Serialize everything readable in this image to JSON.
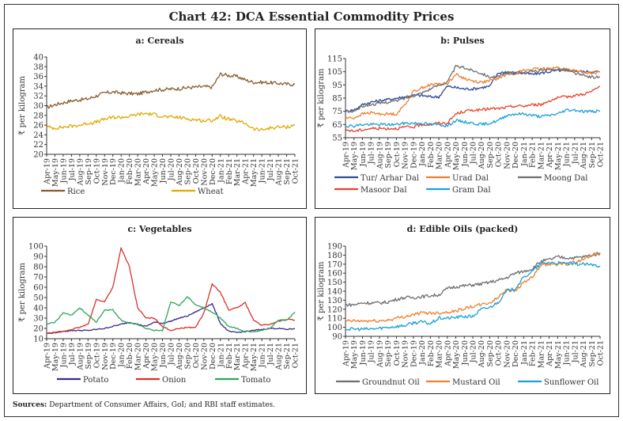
{
  "title": "Chart 42: DCA Essential Commodity Prices",
  "sources_label": "Sources:",
  "sources_text": "Department of Consumer Affairs, GoI; and RBI staff estimates.",
  "chart_data": [
    {
      "id": "cereals",
      "type": "line",
      "title": "a: Cereals",
      "xlabel": "",
      "ylabel": "₹ per kilogram",
      "ylim": [
        20,
        40
      ],
      "yticks": [
        20,
        22,
        24,
        26,
        28,
        30,
        32,
        34,
        36,
        38,
        40
      ],
      "categories": [
        "Apr-19",
        "May-19",
        "Jun-19",
        "Jul-19",
        "Aug-19",
        "Sep-19",
        "Oct-19",
        "Nov-19",
        "Dec-19",
        "Jan-20",
        "Feb-20",
        "Mar-20",
        "Apr-20",
        "May-20",
        "Jun-20",
        "Jul-20",
        "Aug-20",
        "Sep-20",
        "Oct-20",
        "Nov-20",
        "Dec-20",
        "Jan-21",
        "Feb-21",
        "Mar-21",
        "Apr-21",
        "May-21",
        "Jun-21",
        "Jul-21",
        "Aug-21",
        "Sep-21",
        "Oct-21"
      ],
      "legend_position": "bottom",
      "series": [
        {
          "name": "Rice",
          "color": "#8B5A2B",
          "values": [
            29.6,
            30.2,
            30.6,
            31.0,
            31.2,
            31.4,
            32.0,
            32.6,
            32.8,
            32.6,
            32.5,
            32.4,
            32.8,
            33.2,
            33.3,
            33.4,
            33.5,
            33.7,
            33.8,
            33.9,
            33.8,
            36.5,
            36.2,
            36.0,
            35.3,
            34.8,
            34.8,
            34.7,
            34.6,
            34.4,
            34.4
          ]
        },
        {
          "name": "Wheat",
          "color": "#E0A800",
          "values": [
            25.6,
            25.4,
            25.6,
            25.8,
            26.0,
            26.4,
            26.6,
            27.2,
            27.6,
            27.6,
            27.8,
            28.2,
            28.4,
            28.2,
            27.8,
            27.6,
            27.6,
            27.3,
            27.1,
            26.9,
            27.0,
            27.8,
            27.2,
            26.8,
            26.4,
            25.2,
            25.0,
            25.4,
            25.6,
            25.6,
            26.0
          ]
        }
      ]
    },
    {
      "id": "pulses",
      "type": "line",
      "title": "b: Pulses",
      "xlabel": "",
      "ylabel": "₹ per kilogram",
      "ylim": [
        55,
        115
      ],
      "yticks": [
        55,
        65,
        75,
        85,
        95,
        105,
        115
      ],
      "categories": [
        "Apr-19",
        "May-19",
        "Jun-19",
        "Jul-19",
        "Aug-19",
        "Sep-19",
        "Oct-19",
        "Nov-19",
        "Dec-19",
        "Jan-20",
        "Feb-20",
        "Mar-20",
        "Apr-20",
        "May-20",
        "Jun-20",
        "Jul-20",
        "Aug-20",
        "Sep-20",
        "Oct-20",
        "Nov-20",
        "Dec-20",
        "Jan-21",
        "Feb-21",
        "Mar-21",
        "Apr-21",
        "May-21",
        "Jun-21",
        "Jul-21",
        "Aug-21",
        "Sep-21",
        "Oct-21"
      ],
      "legend_position": "bottom",
      "series": [
        {
          "name": "Tur/ Arhar Dal",
          "color": "#2E4A9A",
          "values": [
            75,
            76,
            80,
            82,
            83,
            84,
            85,
            86,
            87,
            87,
            86,
            86,
            94,
            93,
            92,
            92,
            93,
            94,
            104,
            105,
            104,
            104,
            103,
            104,
            105,
            106,
            106,
            106,
            105,
            105,
            105
          ]
        },
        {
          "name": "Urad Dal",
          "color": "#F07F2E",
          "values": [
            70,
            70,
            73,
            74,
            73,
            73,
            73,
            80,
            90,
            93,
            95,
            96,
            96,
            103,
            100,
            98,
            97,
            98,
            100,
            103,
            104,
            106,
            107,
            107,
            108,
            108,
            107,
            106,
            104,
            104,
            105
          ]
        },
        {
          "name": "Moong Dal",
          "color": "#6E6E6E",
          "values": [
            75,
            75,
            79,
            80,
            81,
            82,
            83,
            85,
            87,
            89,
            92,
            95,
            97,
            109,
            108,
            106,
            104,
            101,
            101,
            104,
            104,
            105,
            105,
            106,
            106,
            107,
            106,
            104,
            102,
            101,
            101
          ]
        },
        {
          "name": "Masoor Dal",
          "color": "#E8412C",
          "values": [
            61,
            60,
            61,
            62,
            62,
            62,
            62,
            63,
            63,
            65,
            65,
            66,
            66,
            73,
            75,
            76,
            76,
            77,
            77,
            78,
            79,
            79,
            80,
            80,
            83,
            85,
            86,
            87,
            88,
            90,
            94
          ]
        },
        {
          "name": "Gram Dal",
          "color": "#1CA0D8",
          "values": [
            64,
            64,
            65,
            65,
            65,
            65,
            65,
            66,
            66,
            66,
            65,
            65,
            64,
            68,
            67,
            66,
            65,
            66,
            68,
            72,
            73,
            73,
            72,
            71,
            72,
            73,
            76,
            76,
            75,
            75,
            75
          ]
        }
      ]
    },
    {
      "id": "vegetables",
      "type": "line",
      "title": "c: Vegetables",
      "xlabel": "",
      "ylabel": "₹ per kilogram",
      "ylim": [
        10,
        100
      ],
      "yticks": [
        10,
        20,
        30,
        40,
        50,
        60,
        70,
        80,
        90,
        100
      ],
      "categories": [
        "Apr-19",
        "May-19",
        "Jun-19",
        "Jul-19",
        "Aug-19",
        "Sep-19",
        "Oct-19",
        "Nov-19",
        "Dec-19",
        "Jan-20",
        "Feb-20",
        "Mar-20",
        "Apr-20",
        "May-20",
        "Jun-20",
        "Jul-20",
        "Aug-20",
        "Sep-20",
        "Oct-20",
        "Nov-20",
        "Dec-20",
        "Jan-21",
        "Feb-21",
        "Mar-21",
        "Apr-21",
        "May-21",
        "Jun-21",
        "Jul-21",
        "Aug-21",
        "Sep-21",
        "Oct-21"
      ],
      "legend_position": "bottom",
      "series": [
        {
          "name": "Potato",
          "color": "#3B2A8C",
          "values": [
            15,
            16,
            17,
            18,
            18,
            18,
            19,
            20,
            22,
            24,
            26,
            24,
            22,
            26,
            25,
            27,
            30,
            32,
            36,
            40,
            44,
            25,
            17,
            16,
            17,
            18,
            19,
            20,
            20,
            19,
            20
          ]
        },
        {
          "name": "Onion",
          "color": "#D8322A",
          "values": [
            15,
            16,
            17,
            19,
            21,
            24,
            48,
            46,
            60,
            98,
            80,
            40,
            30,
            30,
            22,
            18,
            20,
            21,
            21,
            35,
            63,
            55,
            38,
            40,
            45,
            28,
            23,
            24,
            27,
            29,
            28
          ]
        },
        {
          "name": "Tomato",
          "color": "#2DA55A",
          "values": [
            24,
            26,
            35,
            33,
            40,
            33,
            26,
            38,
            38,
            28,
            25,
            24,
            20,
            18,
            18,
            46,
            42,
            51,
            43,
            40,
            36,
            30,
            22,
            20,
            17,
            17,
            18,
            20,
            28,
            28,
            36
          ]
        }
      ]
    },
    {
      "id": "edible-oils",
      "type": "line",
      "title": "d: Edible Oils (packed)",
      "xlabel": "",
      "ylabel": "₹ per kilogram",
      "ylim": [
        90,
        190
      ],
      "yticks": [
        90,
        100,
        110,
        120,
        130,
        140,
        150,
        160,
        170,
        180,
        190
      ],
      "categories": [
        "Apr-19",
        "May-19",
        "Jun-19",
        "Jul-19",
        "Aug-19",
        "Sep-19",
        "Oct-19",
        "Nov-19",
        "Dec-19",
        "Jan-20",
        "Feb-20",
        "Mar-20",
        "Apr-20",
        "May-20",
        "Jun-20",
        "Jul-20",
        "Aug-20",
        "Sep-20",
        "Oct-20",
        "Nov-20",
        "Dec-20",
        "Jan-21",
        "Feb-21",
        "Mar-21",
        "Apr-21",
        "May-21",
        "Jun-21",
        "Jul-21",
        "Aug-21",
        "Sep-21",
        "Oct-21"
      ],
      "legend_position": "bottom",
      "series": [
        {
          "name": "Groundnut Oil",
          "color": "#6E6E6E",
          "values": [
            125,
            125,
            127,
            127,
            127,
            128,
            131,
            133,
            133,
            134,
            135,
            136,
            143,
            145,
            146,
            147,
            148,
            150,
            152,
            155,
            160,
            162,
            165,
            173,
            175,
            178,
            177,
            177,
            178,
            180,
            182
          ]
        },
        {
          "name": "Mustard Oil",
          "color": "#F07F2E",
          "values": [
            107,
            107,
            107,
            107,
            107,
            108,
            110,
            112,
            114,
            116,
            116,
            116,
            117,
            118,
            121,
            123,
            125,
            127,
            133,
            143,
            140,
            150,
            155,
            168,
            170,
            170,
            170,
            172,
            175,
            180,
            183
          ]
        },
        {
          "name": "Sunflower Oil",
          "color": "#1CA0D8",
          "values": [
            98,
            98,
            98,
            98,
            99,
            100,
            101,
            102,
            105,
            106,
            104,
            110,
            110,
            111,
            112,
            112,
            120,
            122,
            128,
            140,
            143,
            155,
            162,
            170,
            172,
            171,
            171,
            170,
            170,
            169,
            168
          ]
        }
      ]
    }
  ]
}
